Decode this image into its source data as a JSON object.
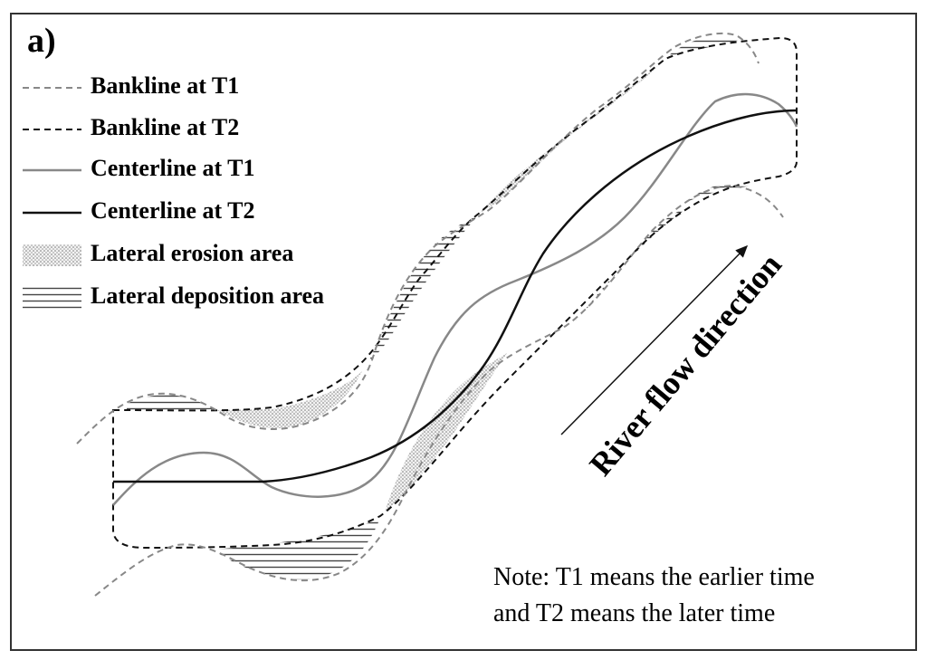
{
  "panel_label": "a)",
  "legend": [
    {
      "label": "Bankline at T1"
    },
    {
      "label": "Bankline at T2"
    },
    {
      "label": "Centerline at T1"
    },
    {
      "label": "Centerline at T2"
    },
    {
      "label": "Lateral erosion area"
    },
    {
      "label": "Lateral deposition area"
    }
  ],
  "flow_label": "River flow direction",
  "note": [
    "Note: T1 means the earlier time",
    "and T2 means the later time"
  ]
}
